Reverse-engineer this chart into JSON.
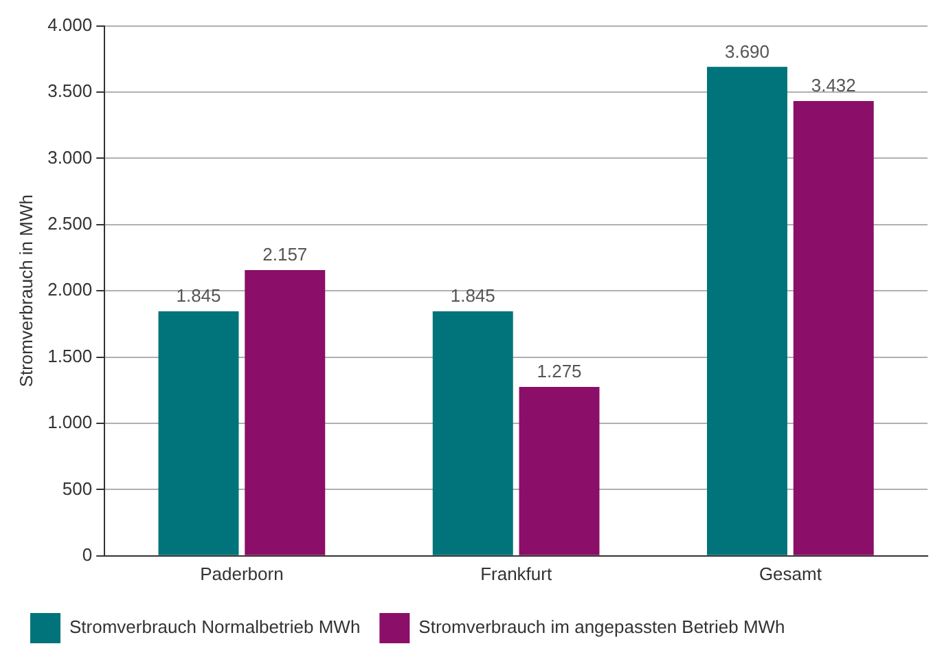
{
  "chart_data": {
    "type": "bar",
    "ylabel": "Stromverbrauch in MWh",
    "categories": [
      "Paderborn",
      "Frankfurt",
      "Gesamt"
    ],
    "series": [
      {
        "name": "Stromverbrauch Normalbetrieb MWh",
        "color": "#00747a",
        "values": [
          1845,
          1845,
          3690
        ],
        "value_labels": [
          "1.845",
          "1.845",
          "3.690"
        ]
      },
      {
        "name": "Stromverbrauch im angepassten Betrieb MWh",
        "color": "#8b0e68",
        "values": [
          2157,
          1275,
          3432
        ],
        "value_labels": [
          "2.157",
          "1.275",
          "3.432"
        ]
      }
    ],
    "ylim": [
      0,
      4000
    ],
    "yticks": [
      0,
      {
        "value": 500,
        "label": "500"
      },
      {
        "value": 1000,
        "label": "1.000"
      },
      {
        "value": 1500,
        "label": "1.500"
      },
      {
        "value": 2000,
        "label": "2.000"
      },
      {
        "value": 2500,
        "label": "2.500"
      },
      {
        "value": 3000,
        "label": "3.000"
      },
      {
        "value": 3500,
        "label": "3.500"
      },
      {
        "value": 4000,
        "label": "4.000"
      }
    ],
    "grid": "y",
    "legend": "bottom"
  }
}
